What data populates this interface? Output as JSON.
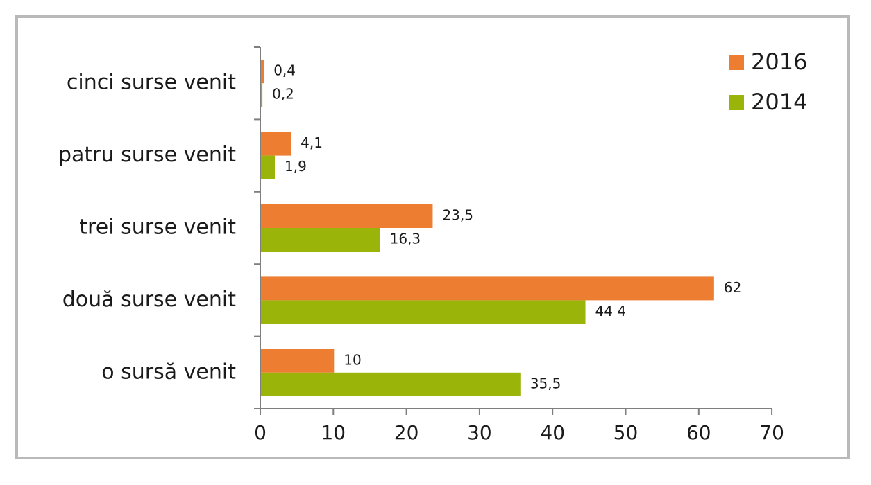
{
  "chart_data": {
    "type": "bar",
    "orientation": "horizontal",
    "categories": [
      "cinci surse venit",
      "patru surse venit",
      "trei surse venit",
      "două surse venit",
      "o sursă venit"
    ],
    "series": [
      {
        "name": "2016",
        "color": "#ed7d31",
        "values": [
          0.4,
          4.1,
          23.5,
          62,
          10
        ],
        "labels": [
          "0,4",
          "4,1",
          "23,5",
          "62",
          "10"
        ]
      },
      {
        "name": "2014",
        "color": "#9bb40a",
        "values": [
          0.2,
          1.9,
          16.3,
          44.4,
          35.5
        ],
        "labels": [
          "0,2",
          "1,9",
          "16,3",
          "44 4",
          "35,5"
        ]
      }
    ],
    "xlim": [
      0,
      70
    ],
    "xticks": [
      "0",
      "10",
      "20",
      "30",
      "40",
      "50",
      "60",
      "70"
    ],
    "grid": false,
    "legend_position": "top-right"
  }
}
